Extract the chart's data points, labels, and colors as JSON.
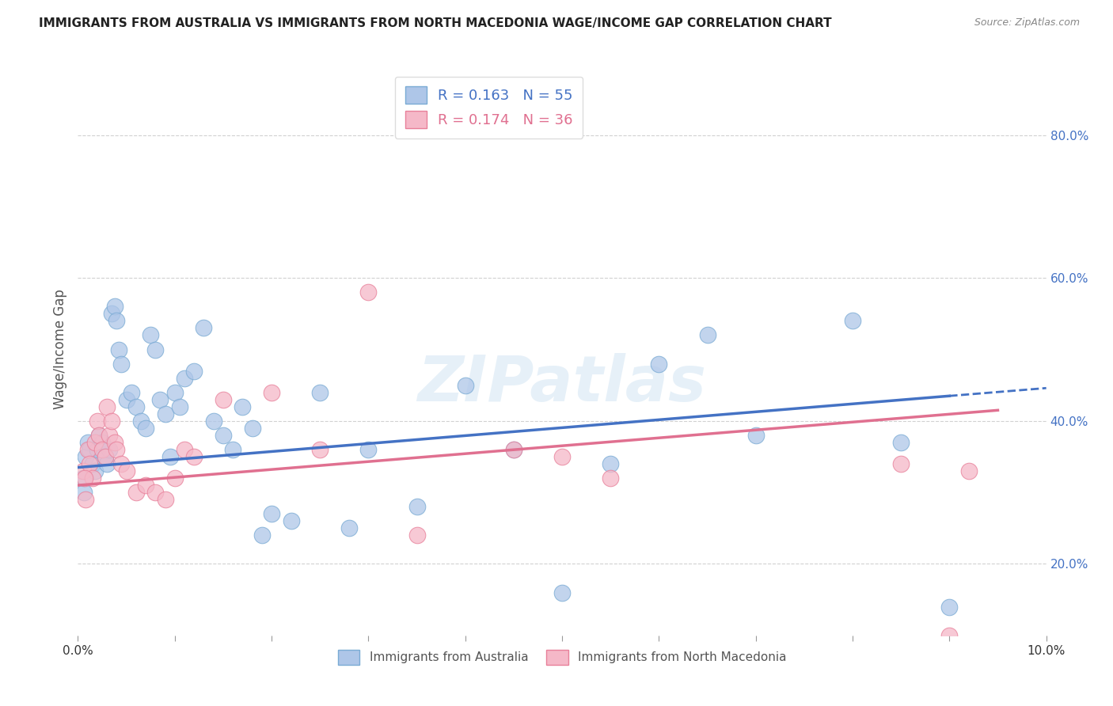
{
  "title": "IMMIGRANTS FROM AUSTRALIA VS IMMIGRANTS FROM NORTH MACEDONIA WAGE/INCOME GAP CORRELATION CHART",
  "source": "Source: ZipAtlas.com",
  "ylabel": "Wage/Income Gap",
  "right_yticks": [
    20.0,
    40.0,
    60.0,
    80.0
  ],
  "xlim": [
    0.0,
    10.0
  ],
  "ylim": [
    10.0,
    90.0
  ],
  "legend1_R": "0.163",
  "legend1_N": "55",
  "legend2_R": "0.174",
  "legend2_N": "36",
  "australia_color": "#aec6e8",
  "macedonia_color": "#f5b8c8",
  "australia_edge": "#7aabd4",
  "macedonia_edge": "#e8809a",
  "watermark": "ZIPatlas",
  "australia_x": [
    0.05,
    0.08,
    0.1,
    0.12,
    0.15,
    0.18,
    0.2,
    0.22,
    0.25,
    0.28,
    0.3,
    0.32,
    0.35,
    0.38,
    0.4,
    0.42,
    0.45,
    0.5,
    0.55,
    0.6,
    0.65,
    0.7,
    0.75,
    0.8,
    0.85,
    0.9,
    0.95,
    1.0,
    1.05,
    1.1,
    1.2,
    1.3,
    1.4,
    1.5,
    1.6,
    1.7,
    1.8,
    1.9,
    2.0,
    2.2,
    2.5,
    2.8,
    3.0,
    3.5,
    4.0,
    4.5,
    5.0,
    5.5,
    6.0,
    6.5,
    7.0,
    8.0,
    8.5,
    9.0,
    0.06
  ],
  "australia_y": [
    32,
    35,
    37,
    36,
    34,
    33,
    36,
    38,
    37,
    35,
    34,
    36,
    55,
    56,
    54,
    50,
    48,
    43,
    44,
    42,
    40,
    39,
    52,
    50,
    43,
    41,
    35,
    44,
    42,
    46,
    47,
    53,
    40,
    38,
    36,
    42,
    39,
    24,
    27,
    26,
    44,
    25,
    36,
    28,
    45,
    36,
    16,
    34,
    48,
    52,
    38,
    54,
    37,
    14,
    30
  ],
  "macedonia_x": [
    0.05,
    0.08,
    0.1,
    0.12,
    0.15,
    0.18,
    0.2,
    0.22,
    0.25,
    0.28,
    0.3,
    0.32,
    0.35,
    0.38,
    0.4,
    0.45,
    0.5,
    0.6,
    0.7,
    0.8,
    0.9,
    1.0,
    1.1,
    1.2,
    1.5,
    2.0,
    2.5,
    3.0,
    3.5,
    4.5,
    5.0,
    5.5,
    8.5,
    9.0,
    9.2,
    0.07
  ],
  "macedonia_y": [
    33,
    29,
    36,
    34,
    32,
    37,
    40,
    38,
    36,
    35,
    42,
    38,
    40,
    37,
    36,
    34,
    33,
    30,
    31,
    30,
    29,
    32,
    36,
    35,
    43,
    44,
    36,
    58,
    24,
    36,
    35,
    32,
    34,
    10,
    33,
    32
  ],
  "aus_line_x0": 0.0,
  "aus_line_y0": 33.5,
  "aus_line_x1": 9.0,
  "aus_line_y1": 43.5,
  "aus_dash_x0": 9.0,
  "aus_dash_y0": 43.5,
  "aus_dash_x1": 10.0,
  "aus_dash_y1": 44.6,
  "mac_line_x0": 0.0,
  "mac_line_y0": 31.0,
  "mac_line_x1": 9.5,
  "mac_line_y1": 41.5,
  "grid_color": "#cccccc",
  "line_color_aus": "#4472c4",
  "line_color_mac": "#e07090",
  "background_color": "#ffffff",
  "marker_size": 220
}
